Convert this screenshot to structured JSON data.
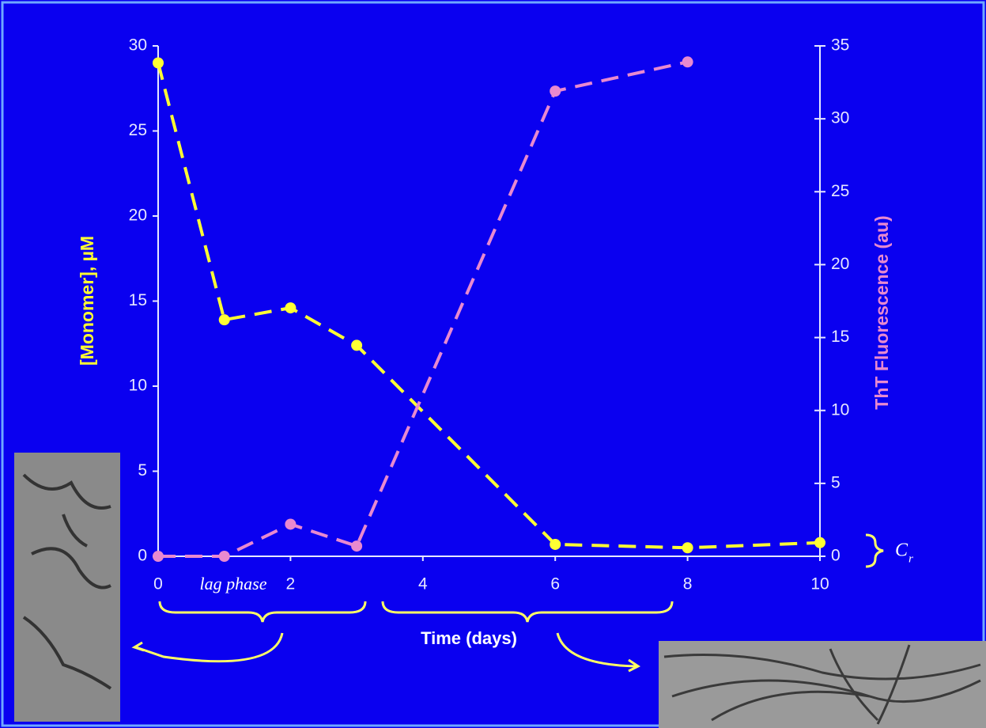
{
  "chart_data": {
    "type": "line",
    "y_label": "[Monomer], µM",
    "y2_label": "ThT Fluorescence (au)",
    "x_label": "Time (days)",
    "xlim": [
      0,
      10
    ],
    "xticks": [
      0,
      2,
      4,
      6,
      8,
      10
    ],
    "ylim": [
      0,
      30
    ],
    "yticks": [
      0,
      5,
      10,
      15,
      20,
      25,
      30
    ],
    "y2lim": [
      0,
      35
    ],
    "y2ticks": [
      0,
      5,
      10,
      15,
      20,
      25,
      30,
      35
    ],
    "series": [
      {
        "color": "#ffff33",
        "x": [
          0,
          1,
          2,
          3,
          6,
          8,
          10
        ],
        "values": [
          29.0,
          13.9,
          14.6,
          12.4,
          0.7,
          0.5,
          0.8
        ]
      },
      {
        "color": "#e889cf",
        "axis": "y2",
        "x": [
          0,
          1,
          2,
          3,
          6,
          8
        ],
        "values": [
          0,
          0,
          2.2,
          0.7,
          31.9,
          33.9
        ]
      }
    ],
    "annotations": {
      "lag": "lag phase",
      "cr_main": "C",
      "cr_sub": "r"
    }
  }
}
